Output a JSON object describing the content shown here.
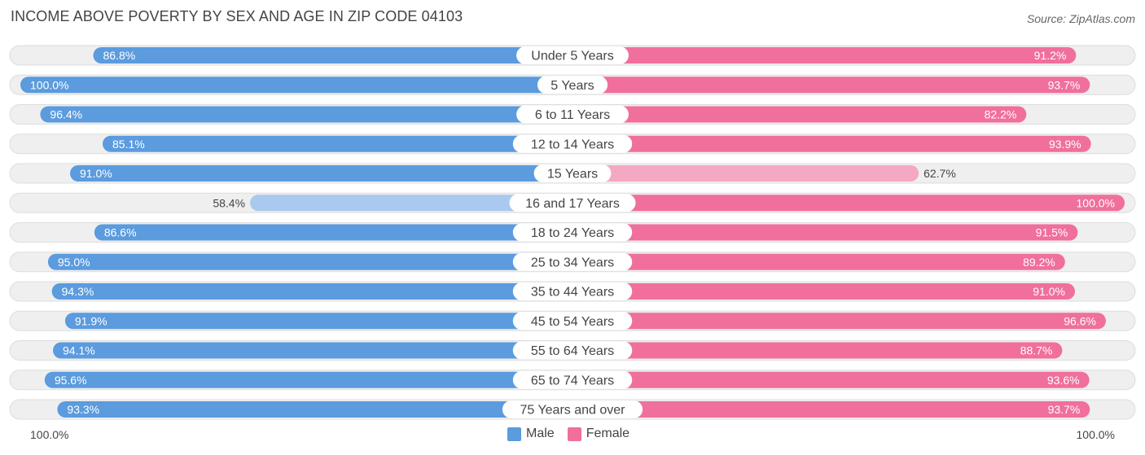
{
  "chart_data": {
    "type": "bar",
    "orientation": "horizontal-diverging",
    "title": "INCOME ABOVE POVERTY BY SEX AND AGE IN ZIP CODE 04103",
    "source": "Source: ZipAtlas.com",
    "categories": [
      "Under 5 Years",
      "5 Years",
      "6 to 11 Years",
      "12 to 14 Years",
      "15 Years",
      "16 and 17 Years",
      "18 to 24 Years",
      "25 to 34 Years",
      "35 to 44 Years",
      "45 to 54 Years",
      "55 to 64 Years",
      "65 to 74 Years",
      "75 Years and over"
    ],
    "series": [
      {
        "name": "Male",
        "values": [
          86.8,
          100.0,
          96.4,
          85.1,
          91.0,
          58.4,
          86.6,
          95.0,
          94.3,
          91.9,
          94.1,
          95.6,
          93.3
        ],
        "labels": [
          "86.8%",
          "100.0%",
          "96.4%",
          "85.1%",
          "91.0%",
          "58.4%",
          "86.6%",
          "95.0%",
          "94.3%",
          "91.9%",
          "94.1%",
          "95.6%",
          "93.3%"
        ]
      },
      {
        "name": "Female",
        "values": [
          91.2,
          93.7,
          82.2,
          93.9,
          62.7,
          100.0,
          91.5,
          89.2,
          91.0,
          96.6,
          88.7,
          93.6,
          93.7
        ],
        "labels": [
          "91.2%",
          "93.7%",
          "82.2%",
          "93.9%",
          "62.7%",
          "100.0%",
          "91.5%",
          "89.2%",
          "91.0%",
          "96.6%",
          "88.7%",
          "93.6%",
          "93.7%"
        ]
      }
    ],
    "axis": {
      "left_label": "100.0%",
      "right_label": "100.0%",
      "max": 100
    },
    "legend": {
      "position": "bottom-center",
      "items": [
        "Male",
        "Female"
      ]
    },
    "colors": {
      "male": "#5b9bde",
      "male_light": "#a9c9ee",
      "female": "#f06f9c",
      "female_light": "#f5a8c3",
      "track": "#efefef",
      "track_border": "#dddddd"
    }
  }
}
